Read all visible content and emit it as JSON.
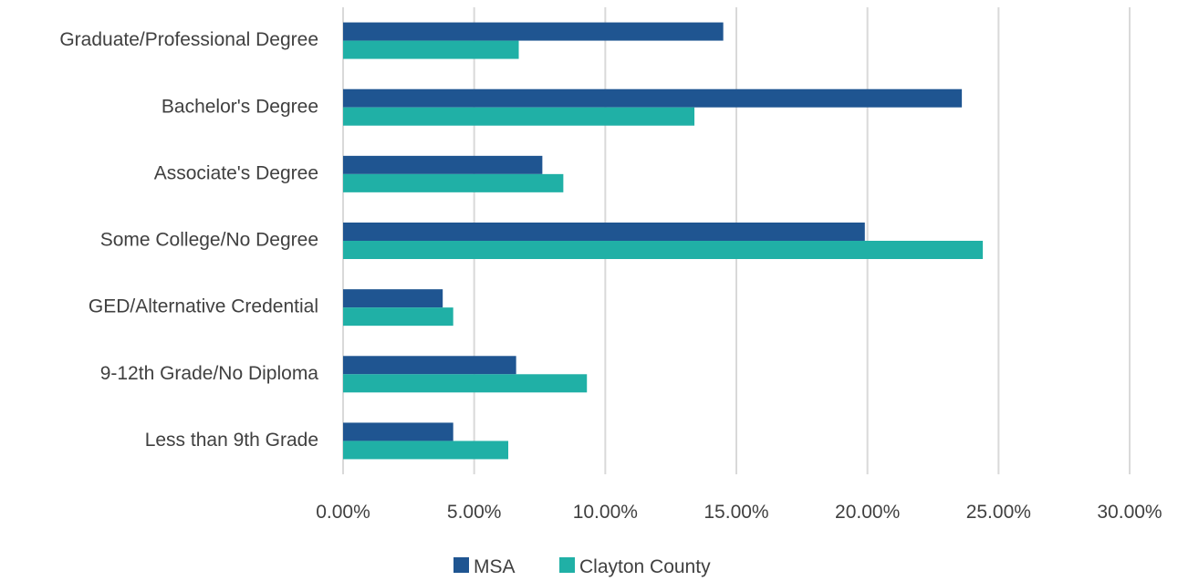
{
  "chart_data": {
    "type": "bar",
    "orientation": "horizontal",
    "categories": [
      "Graduate/Professional Degree",
      "Bachelor's Degree",
      "Associate's Degree",
      "Some College/No Degree",
      "GED/Alternative Credential",
      "9-12th Grade/No Diploma",
      "Less than 9th Grade"
    ],
    "series": [
      {
        "name": "MSA",
        "color": "#1f5591",
        "values": [
          14.5,
          23.6,
          7.6,
          19.9,
          3.8,
          6.6,
          4.2
        ]
      },
      {
        "name": "Clayton County",
        "color": "#20b0a6",
        "values": [
          6.7,
          13.4,
          8.4,
          24.4,
          4.2,
          9.3,
          6.3
        ]
      }
    ],
    "x_ticks": [
      "0.00%",
      "5.00%",
      "10.00%",
      "15.00%",
      "20.00%",
      "25.00%",
      "30.00%"
    ],
    "xlim": [
      0,
      30
    ],
    "grid": true,
    "legend_position": "bottom"
  }
}
